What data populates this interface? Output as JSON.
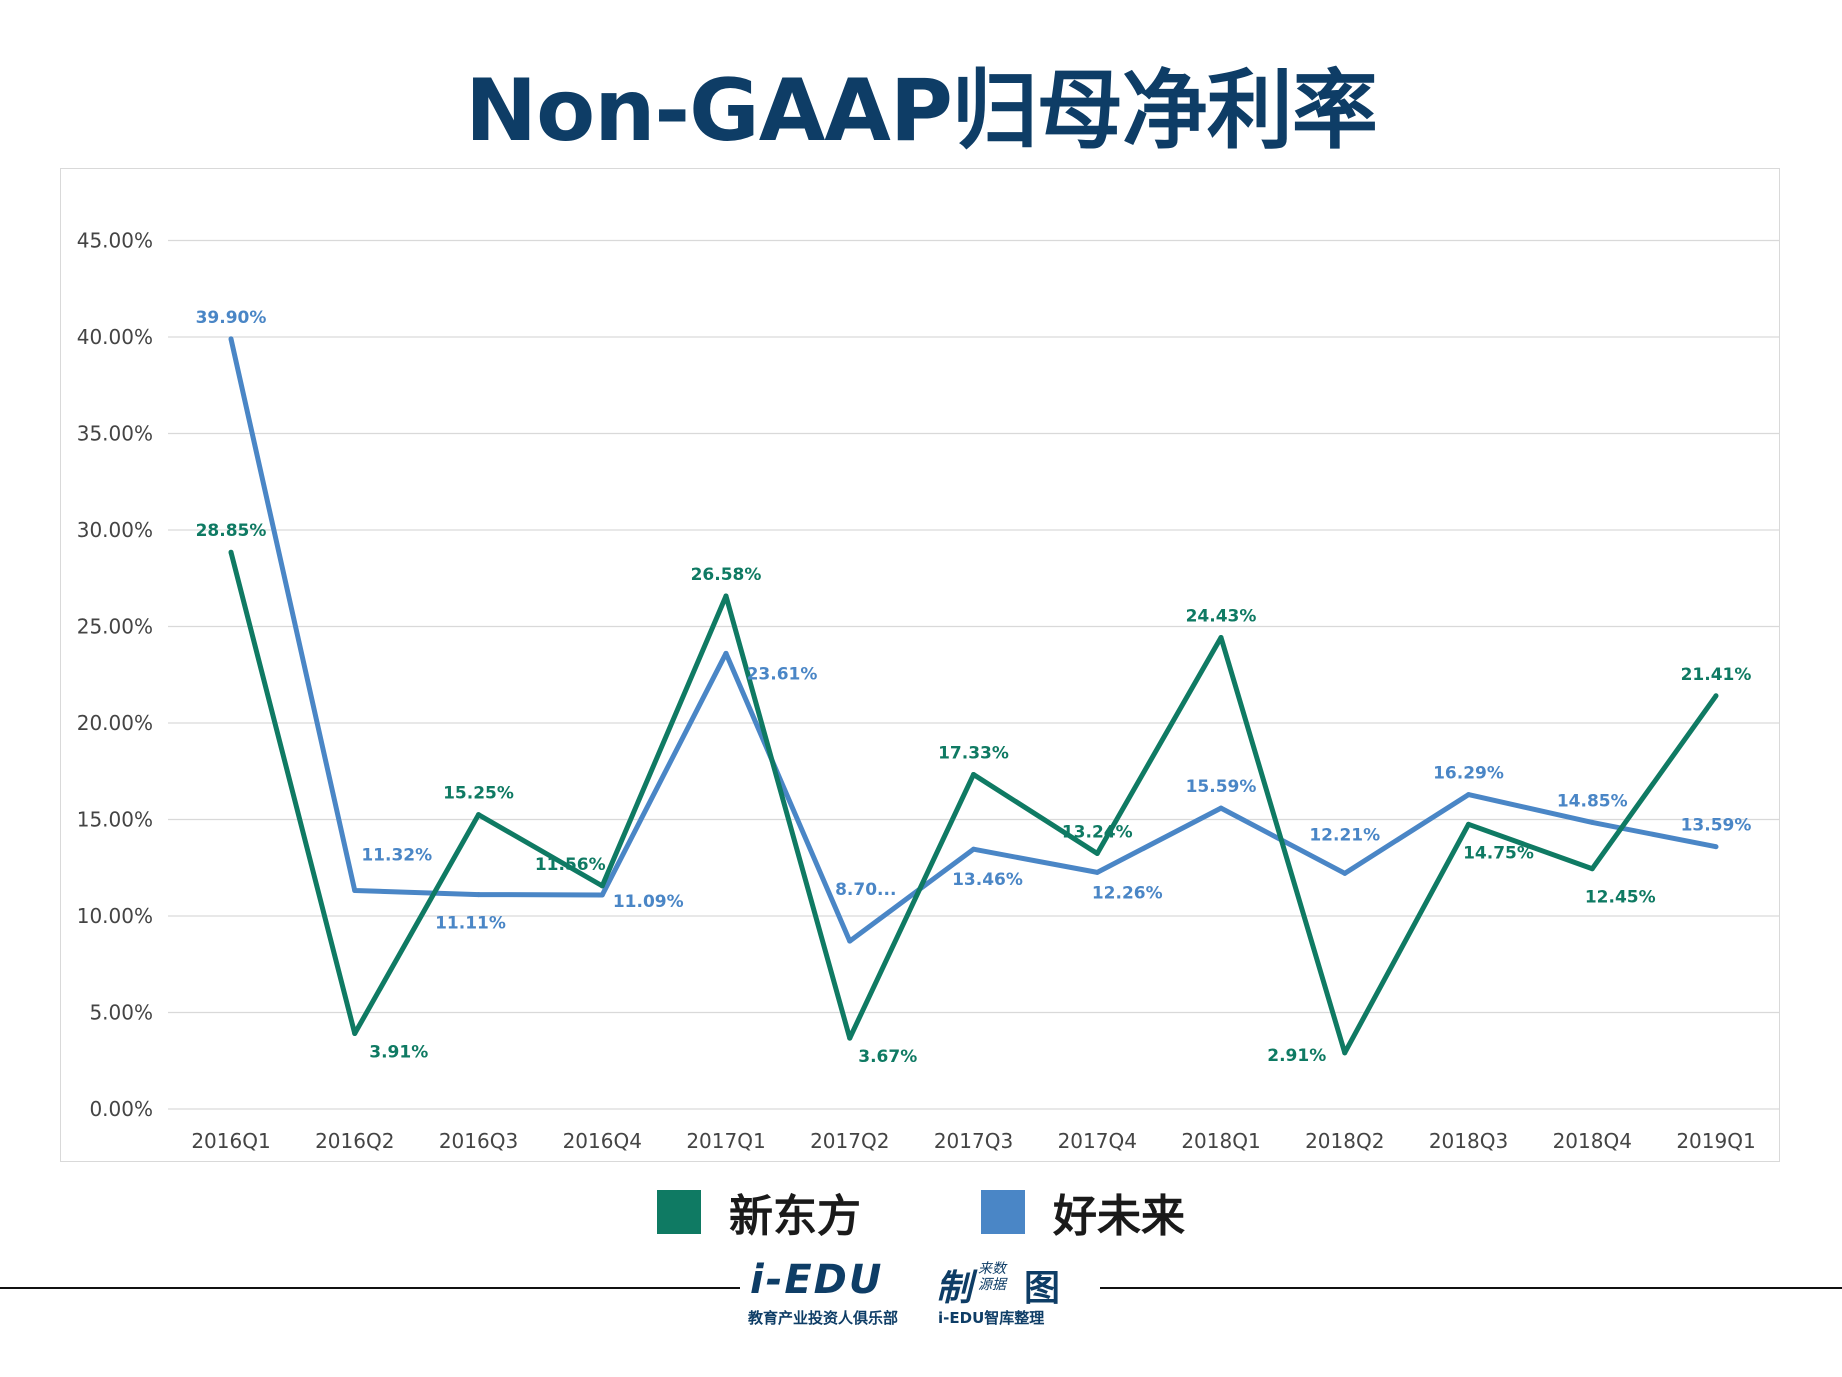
{
  "page": {
    "title": "Non-GAAP归母净利率"
  },
  "colors": {
    "title": "#0e3d66",
    "xdf": "#0f7a63",
    "tal": "#4a86c6",
    "grid": "#d9d9d9",
    "axis_text": "#444444"
  },
  "logo": {
    "main": "i-EDU",
    "mark": "制",
    "small": "来数 源据",
    "mark2": "图",
    "sub1": "教育产业投资人俱乐部",
    "sub2": "i-EDU智库整理"
  },
  "chart_data": {
    "type": "line",
    "title": "Non-GAAP归母净利率",
    "categories": [
      "2016Q1",
      "2016Q2",
      "2016Q3",
      "2016Q4",
      "2017Q1",
      "2017Q2",
      "2017Q3",
      "2017Q4",
      "2018Q1",
      "2018Q2",
      "2018Q3",
      "2018Q4",
      "2019Q1"
    ],
    "ylim": [
      0,
      45
    ],
    "yticks": [
      "0.00%",
      "5.00%",
      "10.00%",
      "15.00%",
      "20.00%",
      "25.00%",
      "30.00%",
      "35.00%",
      "40.00%",
      "45.00%"
    ],
    "grid": true,
    "legend_position": "bottom",
    "series": [
      {
        "name": "新东方",
        "color": "#0f7a63",
        "values": [
          28.85,
          3.91,
          15.25,
          11.56,
          26.58,
          3.67,
          17.33,
          13.24,
          24.43,
          2.91,
          14.75,
          12.45,
          21.41
        ],
        "labels": [
          "28.85%",
          "3.91%",
          "15.25%",
          "11.56%",
          "26.58%",
          "3.67%",
          "17.33%",
          "13.24%",
          "24.43%",
          "2.91%",
          "14.75%",
          "12.45%",
          "21.41%"
        ]
      },
      {
        "name": "好未来",
        "color": "#4a86c6",
        "values": [
          39.9,
          11.32,
          11.11,
          11.09,
          23.61,
          8.7,
          13.46,
          12.26,
          15.59,
          12.21,
          16.29,
          14.85,
          13.59
        ],
        "labels": [
          "39.90%",
          "11.32%",
          "11.11%",
          "11.09%",
          "23.61%",
          "8.70...",
          "13.46%",
          "12.26%",
          "15.59%",
          "12.21%",
          "16.29%",
          "14.85%",
          "13.59%"
        ]
      }
    ]
  }
}
